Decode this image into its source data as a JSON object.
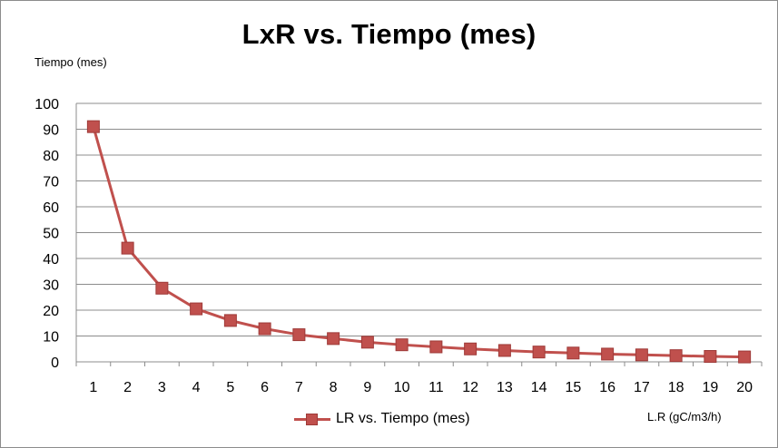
{
  "chart_data": {
    "type": "line",
    "title": "LxR vs. Tiempo (mes)",
    "ylabel": "Tiempo (mes)",
    "xlabel": "L.R (gC/m3/h)",
    "ylim": [
      0,
      100
    ],
    "yticks": [
      0,
      10,
      20,
      30,
      40,
      50,
      60,
      70,
      80,
      90,
      100
    ],
    "categories": [
      "1",
      "2",
      "3",
      "4",
      "5",
      "6",
      "7",
      "8",
      "9",
      "10",
      "11",
      "12",
      "13",
      "14",
      "15",
      "16",
      "17",
      "18",
      "19",
      "20"
    ],
    "series": [
      {
        "name": "LR vs. Tiempo (mes)",
        "color": "#c0504d",
        "marker": "square",
        "values": [
          91,
          44,
          28.5,
          20.5,
          16,
          12.8,
          10.5,
          9,
          7.6,
          6.6,
          5.8,
          5,
          4.4,
          3.8,
          3.4,
          3,
          2.7,
          2.4,
          2.1,
          1.9
        ]
      }
    ],
    "grid": "horizontal",
    "legend": "bottom"
  }
}
